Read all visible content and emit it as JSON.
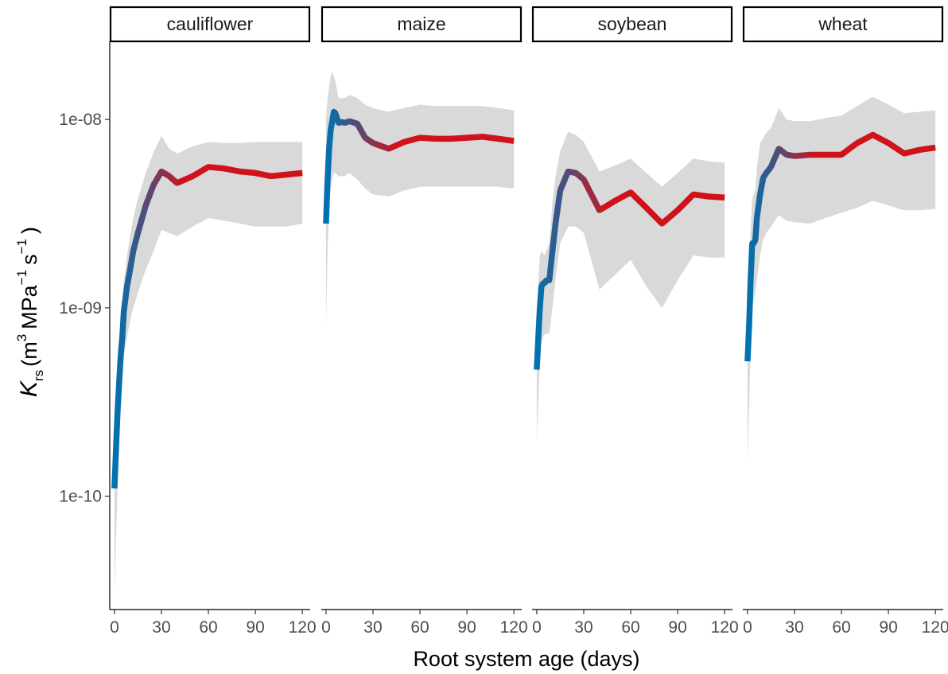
{
  "chart_data": {
    "type": "line",
    "y_scale": "log10",
    "ylim": [
      2.5e-11,
      2.6e-08
    ],
    "xlim": [
      -3,
      125
    ],
    "x_ticks": [
      0,
      30,
      60,
      90,
      120
    ],
    "x_tick_labels": [
      "0",
      "30",
      "60",
      "90",
      "120"
    ],
    "y_ticks": [
      1e-10,
      1e-09,
      1e-08
    ],
    "y_tick_labels": [
      "1e-10",
      "1e-09",
      "1e-08"
    ],
    "xlabel": "Root system age (days)",
    "ylabel": {
      "symbol": "K",
      "subscript": "rs",
      "open": "(m",
      "exp1": "3",
      "mid": "MPa",
      "exp2": "−1",
      "s": "s",
      "exp3": "−1",
      "close": ")"
    },
    "grid": false,
    "legend": "none",
    "colors": {
      "young": "#0072B2",
      "old": "#D0121B",
      "ribbon": "#D9D9D9",
      "strip_fill": "#FFFFFF",
      "strip_border": "#000000"
    },
    "panels": [
      {
        "name": "cauliflower",
        "x": [
          0,
          1,
          2,
          3,
          4,
          5,
          6,
          8,
          10,
          12,
          15,
          20,
          25,
          30,
          35,
          40,
          50,
          60,
          70,
          80,
          90,
          100,
          110,
          120
        ],
        "y": [
          1.1e-10,
          1.8e-10,
          2.8e-10,
          4e-10,
          5.6e-10,
          7e-10,
          9.6e-10,
          1.3e-09,
          1.6e-09,
          2e-09,
          2.5e-09,
          3.5e-09,
          4.5e-09,
          5.3e-09,
          5e-09,
          4.6e-09,
          5e-09,
          5.6e-09,
          5.5e-09,
          5.3e-09,
          5.2e-09,
          5e-09,
          5.1e-09,
          5.2e-09
        ],
        "lower": [
          3e-11,
          6e-11,
          1.1e-10,
          2e-10,
          3e-10,
          4e-10,
          5.5e-10,
          7e-10,
          8.5e-10,
          1e-09,
          1.2e-09,
          1.6e-09,
          2e-09,
          2.6e-09,
          2.5e-09,
          2.4e-09,
          2.7e-09,
          3e-09,
          2.9e-09,
          2.8e-09,
          2.7e-09,
          2.7e-09,
          2.7e-09,
          2.8e-09
        ],
        "upper": [
          1.6e-10,
          2.6e-10,
          3.8e-10,
          5.8e-10,
          8e-10,
          1e-09,
          1.4e-09,
          1.9e-09,
          2.4e-09,
          3e-09,
          3.8e-09,
          5.2e-09,
          6.7e-09,
          8.2e-09,
          7e-09,
          6.6e-09,
          7.2e-09,
          7.6e-09,
          7.5e-09,
          7.5e-09,
          7.6e-09,
          7.6e-09,
          7.6e-09,
          7.6e-09
        ]
      },
      {
        "name": "maize",
        "x": [
          0,
          1,
          2,
          3,
          4,
          5,
          6,
          8,
          10,
          12,
          15,
          20,
          25,
          30,
          40,
          50,
          60,
          70,
          80,
          90,
          100,
          110,
          120
        ],
        "y": [
          2.8e-09,
          4.8e-09,
          7e-09,
          8.8e-09,
          9.8e-09,
          1.1e-08,
          1.08e-08,
          9.6e-09,
          9.7e-09,
          9.6e-09,
          9.8e-09,
          9.5e-09,
          8e-09,
          7.5e-09,
          7e-09,
          7.6e-09,
          8e-09,
          7.9e-09,
          7.9e-09,
          8e-09,
          8.1e-09,
          7.9e-09,
          7.7e-09
        ],
        "lower": [
          8e-10,
          2e-09,
          3.5e-09,
          4.3e-09,
          4.8e-09,
          5.2e-09,
          5.2e-09,
          5e-09,
          5e-09,
          5e-09,
          5.2e-09,
          4.8e-09,
          4.3e-09,
          4e-09,
          3.9e-09,
          4.2e-09,
          4.4e-09,
          4.4e-09,
          4.4e-09,
          4.4e-09,
          4.4e-09,
          4.4e-09,
          4.3e-09
        ],
        "upper": [
          1e-08,
          1.3e-08,
          1.5e-08,
          1.7e-08,
          1.8e-08,
          1.7e-08,
          1.6e-08,
          1.3e-08,
          1.3e-08,
          1.3e-08,
          1.35e-08,
          1.3e-08,
          1.2e-08,
          1.15e-08,
          1.1e-08,
          1.15e-08,
          1.2e-08,
          1.18e-08,
          1.18e-08,
          1.18e-08,
          1.18e-08,
          1.15e-08,
          1.12e-08
        ]
      },
      {
        "name": "soybean",
        "x": [
          0,
          1,
          2,
          3,
          4,
          5,
          6,
          8,
          10,
          12,
          15,
          20,
          25,
          30,
          40,
          50,
          60,
          70,
          80,
          90,
          100,
          110,
          120
        ],
        "y": [
          4.7e-10,
          7e-10,
          1e-09,
          1.3e-09,
          1.35e-09,
          1.35e-09,
          1.4e-09,
          1.4e-09,
          2e-09,
          2.8e-09,
          4.2e-09,
          5.3e-09,
          5.2e-09,
          4.8e-09,
          3.3e-09,
          3.7e-09,
          4.1e-09,
          3.4e-09,
          2.8e-09,
          3.3e-09,
          4e-09,
          3.9e-09,
          3.85e-09
        ],
        "lower": [
          2e-10,
          3.2e-10,
          5e-10,
          6.5e-10,
          7e-10,
          7.2e-10,
          7.3e-10,
          7.3e-10,
          1e-09,
          1.4e-09,
          2.2e-09,
          2.7e-09,
          2.7e-09,
          2.5e-09,
          1.25e-09,
          1.5e-09,
          1.8e-09,
          1.3e-09,
          1e-09,
          1.4e-09,
          1.9e-09,
          1.85e-09,
          1.85e-09
        ],
        "upper": [
          9e-10,
          1.4e-09,
          1.9e-09,
          2e-09,
          1.95e-09,
          1.9e-09,
          2e-09,
          2.2e-09,
          3.6e-09,
          5e-09,
          6.8e-09,
          8.6e-09,
          8.3e-09,
          7.6e-09,
          5.3e-09,
          5.7e-09,
          6.2e-09,
          5.2e-09,
          4.4e-09,
          5.2e-09,
          6.2e-09,
          6e-09,
          5.9e-09
        ]
      },
      {
        "name": "wheat",
        "x": [
          0,
          1,
          2,
          3,
          4,
          5,
          6,
          8,
          10,
          12,
          15,
          20,
          25,
          30,
          40,
          50,
          60,
          70,
          80,
          90,
          100,
          110,
          120
        ],
        "y": [
          5.2e-10,
          8e-10,
          1.4e-09,
          2.2e-09,
          2.2e-09,
          2.3e-09,
          3e-09,
          4e-09,
          4.9e-09,
          5.2e-09,
          5.6e-09,
          7e-09,
          6.5e-09,
          6.4e-09,
          6.5e-09,
          6.5e-09,
          6.5e-09,
          7.5e-09,
          8.3e-09,
          7.5e-09,
          6.6e-09,
          6.9e-09,
          7.1e-09
        ],
        "lower": [
          1.5e-10,
          3e-10,
          6e-10,
          1e-09,
          1.1e-09,
          1.2e-09,
          1.4e-09,
          1.9e-09,
          2.3e-09,
          2.5e-09,
          2.7e-09,
          3.1e-09,
          2.9e-09,
          2.85e-09,
          2.8e-09,
          3e-09,
          3.2e-09,
          3.4e-09,
          3.7e-09,
          3.5e-09,
          3.3e-09,
          3.3e-09,
          3.35e-09
        ],
        "upper": [
          1e-09,
          1.6e-09,
          2.6e-09,
          3.8e-09,
          4e-09,
          4.2e-09,
          5.5e-09,
          7.5e-09,
          8e-09,
          8.5e-09,
          9e-09,
          1.15e-08,
          1e-08,
          9.8e-09,
          9.8e-09,
          1.02e-08,
          1.05e-08,
          1.18e-08,
          1.32e-08,
          1.2e-08,
          1.08e-08,
          1.1e-08,
          1.12e-08
        ]
      }
    ]
  }
}
